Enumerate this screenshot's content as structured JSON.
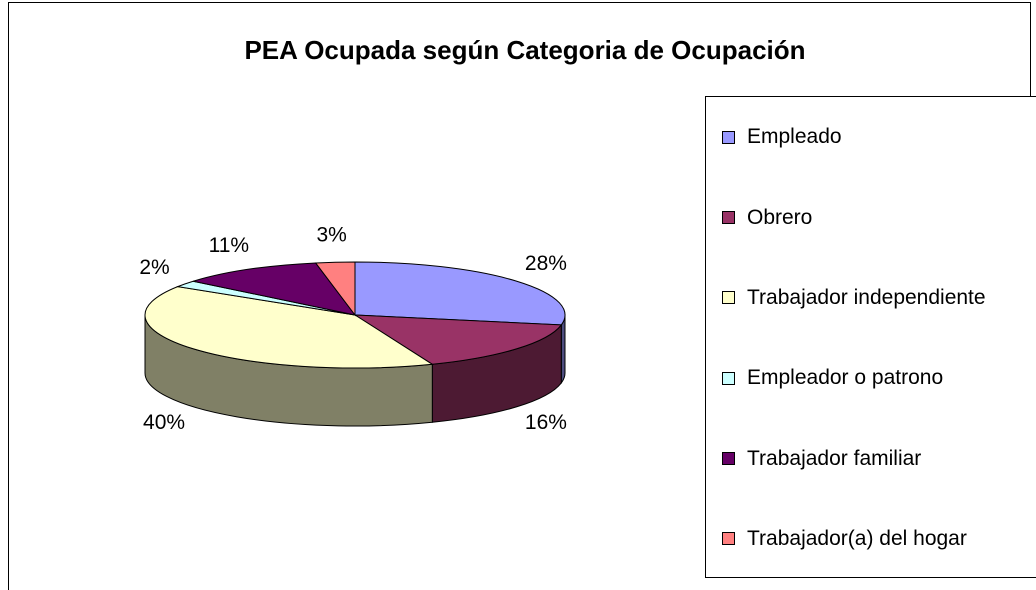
{
  "chart_data": {
    "type": "pie",
    "title": "PEA Ocupada según Categoria de Ocupación",
    "categories": [
      "Empleado",
      "Obrero",
      "Trabajador independiente",
      "Empleador o patrono",
      "Trabajador familiar",
      "Trabajador(a) del hogar"
    ],
    "values": [
      28,
      16,
      40,
      2,
      11,
      3
    ],
    "value_labels": [
      "28%",
      "16%",
      "40%",
      "2%",
      "11%",
      "3%"
    ],
    "colors": [
      "#9999ff",
      "#993366",
      "#ffffcc",
      "#ccffff",
      "#660066",
      "#ff8080"
    ],
    "legend": "right"
  }
}
